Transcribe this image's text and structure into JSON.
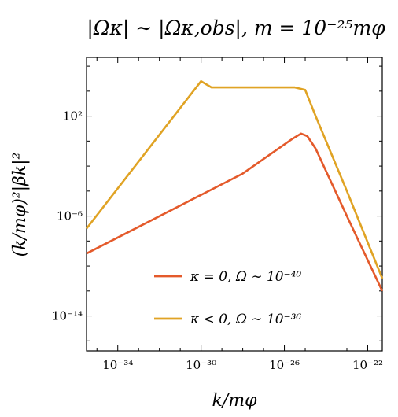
{
  "chart_data": {
    "type": "line",
    "title": "|Ωκ| ∼ |Ωκ,obs|, m = 10⁻²⁵mφ",
    "xlabel": "k/mφ",
    "ylabel": "(k/mφ)²|βk|²",
    "xscale": "log",
    "yscale": "log",
    "xlim_exp": [
      -35.5,
      -21.3
    ],
    "ylim_exp": [
      -16.8,
      6.7
    ],
    "grid": false,
    "legend_position": "lower-right",
    "x_ticks": [
      {
        "label": "10⁻³⁴",
        "exp": -34
      },
      {
        "label": "10⁻³⁰",
        "exp": -30
      },
      {
        "label": "10⁻²⁶",
        "exp": -26
      },
      {
        "label": "10⁻²²",
        "exp": -22
      }
    ],
    "y_ticks": [
      {
        "label": "10²",
        "exp": 2
      },
      {
        "label": "10⁻⁶",
        "exp": -6
      },
      {
        "label": "10⁻¹⁴",
        "exp": -14
      }
    ],
    "series": [
      {
        "name": "κ = 0, Ω ∼ 10⁻⁴⁰",
        "color": "#e45a2b",
        "points_log10": [
          [
            -35.5,
            -9.0
          ],
          [
            -28.0,
            -2.6
          ],
          [
            -25.6,
            0.2
          ],
          [
            -25.2,
            0.6
          ],
          [
            -24.9,
            0.4
          ],
          [
            -24.5,
            -0.6
          ],
          [
            -23.0,
            -6.0
          ],
          [
            -21.3,
            -12.0
          ]
        ]
      },
      {
        "name": "κ < 0, Ω ∼ 10⁻³⁶",
        "color": "#e0a324",
        "points_log10": [
          [
            -35.5,
            -7.0
          ],
          [
            -30.0,
            4.8
          ],
          [
            -29.5,
            4.3
          ],
          [
            -25.5,
            4.3
          ],
          [
            -25.0,
            4.1
          ],
          [
            -24.5,
            2.0
          ],
          [
            -23.0,
            -4.0
          ],
          [
            -21.3,
            -11.0
          ]
        ]
      }
    ]
  }
}
